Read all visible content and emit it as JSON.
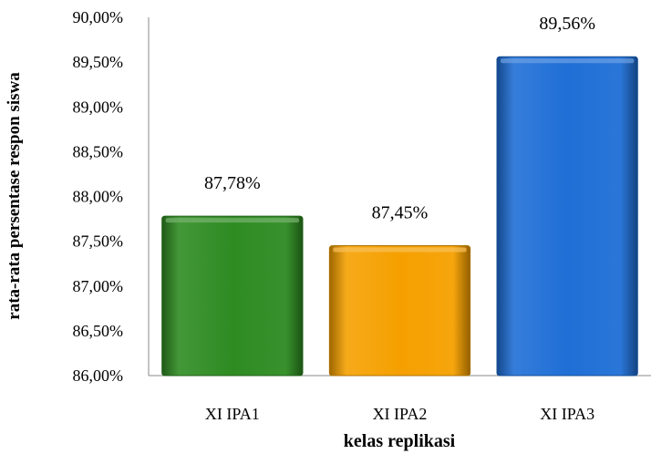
{
  "chart_data": {
    "type": "bar",
    "categories": [
      "XI IPA1",
      "XI IPA2",
      "XI IPA3"
    ],
    "values": [
      87.78,
      87.45,
      89.56
    ],
    "data_labels": [
      "87,78%",
      "87,45%",
      "89,56%"
    ],
    "bar_colors": [
      "#2e8b22",
      "#f5a000",
      "#1f6fd6"
    ],
    "ylabel": "rata-rata persentase respon siswa",
    "xlabel": "kelas replikasi",
    "ylim": [
      86.0,
      90.0
    ],
    "y_ticks": [
      86.0,
      86.5,
      87.0,
      87.5,
      88.0,
      88.5,
      89.0,
      89.5,
      90.0
    ],
    "y_tick_labels": [
      "86,00%",
      "86,50%",
      "87,00%",
      "87,50%",
      "88,00%",
      "88,50%",
      "89,00%",
      "89,50%",
      "90,00%"
    ],
    "grid": false,
    "legend": "none"
  }
}
